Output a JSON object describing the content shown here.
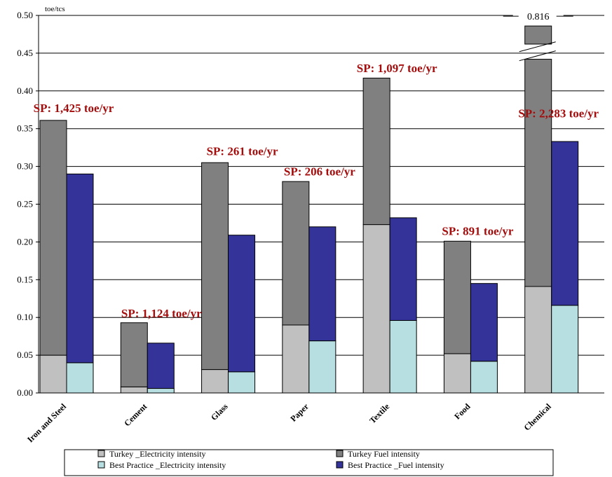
{
  "chart_data": {
    "type": "bar",
    "stacked": true,
    "grouped": true,
    "unit_label": "toe/tcs",
    "title": "",
    "xlabel": "",
    "ylabel": "",
    "ylim": [
      0,
      0.5
    ],
    "yticks": [
      "0.00",
      "0.05",
      "0.10",
      "0.15",
      "0.20",
      "0.25",
      "0.30",
      "0.35",
      "0.40",
      "0.45",
      "0.50"
    ],
    "grid": true,
    "legend_position": "bottom",
    "categories": [
      "Iron and Steel",
      "Cement",
      "Glass",
      "Paper",
      "Textile",
      "Food",
      "Chemical"
    ],
    "series": [
      {
        "name": "Turkey _Electricity intensity",
        "group": "Turkey",
        "color": "#c0c0c0",
        "values": [
          0.05,
          0.008,
          0.031,
          0.09,
          0.223,
          0.052,
          0.141
        ]
      },
      {
        "name": "Turkey Fuel intensity",
        "group": "Turkey",
        "color": "#808080",
        "values": [
          0.311,
          0.085,
          0.274,
          0.19,
          0.194,
          0.149,
          0.675
        ]
      },
      {
        "name": "Best Practice _Electricity intensity",
        "group": "Best Practice",
        "color": "#b7dfe2",
        "values": [
          0.04,
          0.006,
          0.028,
          0.069,
          0.096,
          0.042,
          0.116
        ]
      },
      {
        "name": "Best Practice _Fuel intensity",
        "group": "Best Practice",
        "color": "#333399",
        "values": [
          0.25,
          0.06,
          0.181,
          0.151,
          0.136,
          0.103,
          0.217
        ]
      }
    ],
    "annotations": [
      {
        "category": "Iron and Steel",
        "text": "SP: 1,425 toe/yr"
      },
      {
        "category": "Cement",
        "text": "SP: 1,124 toe/yr"
      },
      {
        "category": "Glass",
        "text": "SP: 261 toe/yr"
      },
      {
        "category": "Paper",
        "text": "SP: 206 toe/yr"
      },
      {
        "category": "Textile",
        "text": "SP: 1,097 toe/yr"
      },
      {
        "category": "Food",
        "text": "SP: 891 toe/yr"
      },
      {
        "category": "Chemical",
        "text": "SP: 2,283 toe/yr"
      }
    ],
    "axis_break": {
      "category": "Chemical",
      "series": "Turkey",
      "total_label": "0.816"
    }
  }
}
